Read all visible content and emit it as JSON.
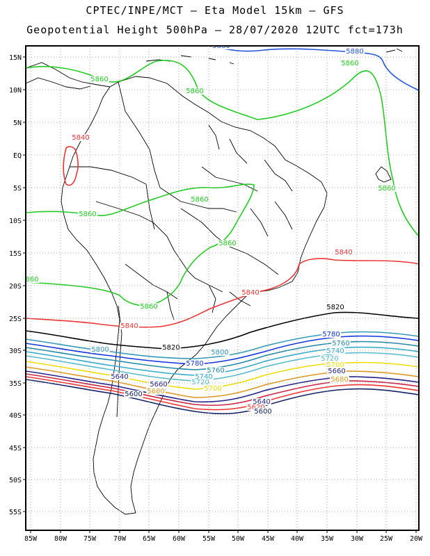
{
  "title": {
    "line1": "CPTEC/INPE/MCT –  Eta Model 15km – GFS",
    "line2": "Geopotential Height 500hPa – 28/07/2020 12UTC fct=173h"
  },
  "axes": {
    "lat_labels": [
      "15N",
      "10N",
      "5N",
      "EQ",
      "5S",
      "10S",
      "15S",
      "20S",
      "25S",
      "30S",
      "35S",
      "40S",
      "45S",
      "50S",
      "55S"
    ],
    "lon_labels": [
      "85W",
      "80W",
      "75W",
      "70W",
      "65W",
      "60W",
      "55W",
      "50W",
      "45W",
      "40W",
      "35W",
      "30W",
      "25W",
      "20W"
    ]
  },
  "map": {
    "extent": {
      "lon": [
        -86,
        -20
      ],
      "lat": [
        -58,
        16
      ]
    },
    "grid": "dotted"
  },
  "contour_levels": [
    {
      "value": "5880",
      "color": "#2255dd"
    },
    {
      "value": "5860",
      "color": "#22cc22"
    },
    {
      "value": "5840",
      "color": "#ee3333"
    },
    {
      "value": "5820",
      "color": "#000000"
    },
    {
      "value": "5800",
      "color": "#3399bb"
    },
    {
      "value": "5780",
      "color": "#1133dd"
    },
    {
      "value": "5760",
      "color": "#2288aa"
    },
    {
      "value": "5740",
      "color": "#33aacc"
    },
    {
      "value": "5720",
      "color": "#55bbcc"
    },
    {
      "value": "5700",
      "color": "#eedd00"
    },
    {
      "value": "5680",
      "color": "#dd9922"
    },
    {
      "value": "5660",
      "color": "#222288"
    },
    {
      "value": "5640",
      "color": "#cc2244"
    },
    {
      "value": "5620",
      "color": "#ee3333"
    },
    {
      "value": "5600",
      "color": "#112266"
    }
  ],
  "contour_labels": [
    {
      "text": "5880",
      "color": "#2255dd"
    },
    {
      "text": "5880",
      "color": "#2255dd"
    },
    {
      "text": "5860",
      "color": "#22cc22"
    },
    {
      "text": "5860",
      "color": "#22cc22"
    },
    {
      "text": "5860",
      "color": "#22cc22"
    },
    {
      "text": "5860",
      "color": "#22cc22"
    },
    {
      "text": "5860",
      "color": "#22cc22"
    },
    {
      "text": "5860",
      "color": "#22cc22"
    },
    {
      "text": "5860",
      "color": "#22cc22"
    },
    {
      "text": "860",
      "color": "#22cc22"
    },
    {
      "text": "5860",
      "color": "#22cc22"
    },
    {
      "text": "5840",
      "color": "#ee3333"
    },
    {
      "text": "5840",
      "color": "#ee3333"
    },
    {
      "text": "5840",
      "color": "#ee3333"
    },
    {
      "text": "5840",
      "color": "#ee3333"
    },
    {
      "text": "5820",
      "color": "#000000"
    },
    {
      "text": "5820",
      "color": "#000000"
    },
    {
      "text": "5800",
      "color": "#3399bb"
    },
    {
      "text": "5800",
      "color": "#3399bb"
    },
    {
      "text": "5780",
      "color": "#1133dd"
    },
    {
      "text": "5780",
      "color": "#1133dd"
    },
    {
      "text": "5760",
      "color": "#2288aa"
    },
    {
      "text": "5760",
      "color": "#2288aa"
    },
    {
      "text": "5740",
      "color": "#33aacc"
    },
    {
      "text": "5740",
      "color": "#33aacc"
    },
    {
      "text": "5720",
      "color": "#55bbcc"
    },
    {
      "text": "5720",
      "color": "#55bbcc"
    },
    {
      "text": "5700",
      "color": "#eedd00"
    },
    {
      "text": "5700",
      "color": "#eedd00"
    },
    {
      "text": "5680",
      "color": "#dd9922"
    },
    {
      "text": "5680",
      "color": "#dd9922"
    },
    {
      "text": "5680",
      "color": "#dd9922"
    },
    {
      "text": "5660",
      "color": "#222288"
    },
    {
      "text": "5660",
      "color": "#222288"
    },
    {
      "text": "5640",
      "color": "#222288"
    },
    {
      "text": "5640",
      "color": "#222288"
    },
    {
      "text": "5620",
      "color": "#ee3333"
    },
    {
      "text": "5600",
      "color": "#112266"
    },
    {
      "text": "5600",
      "color": "#112266"
    }
  ]
}
